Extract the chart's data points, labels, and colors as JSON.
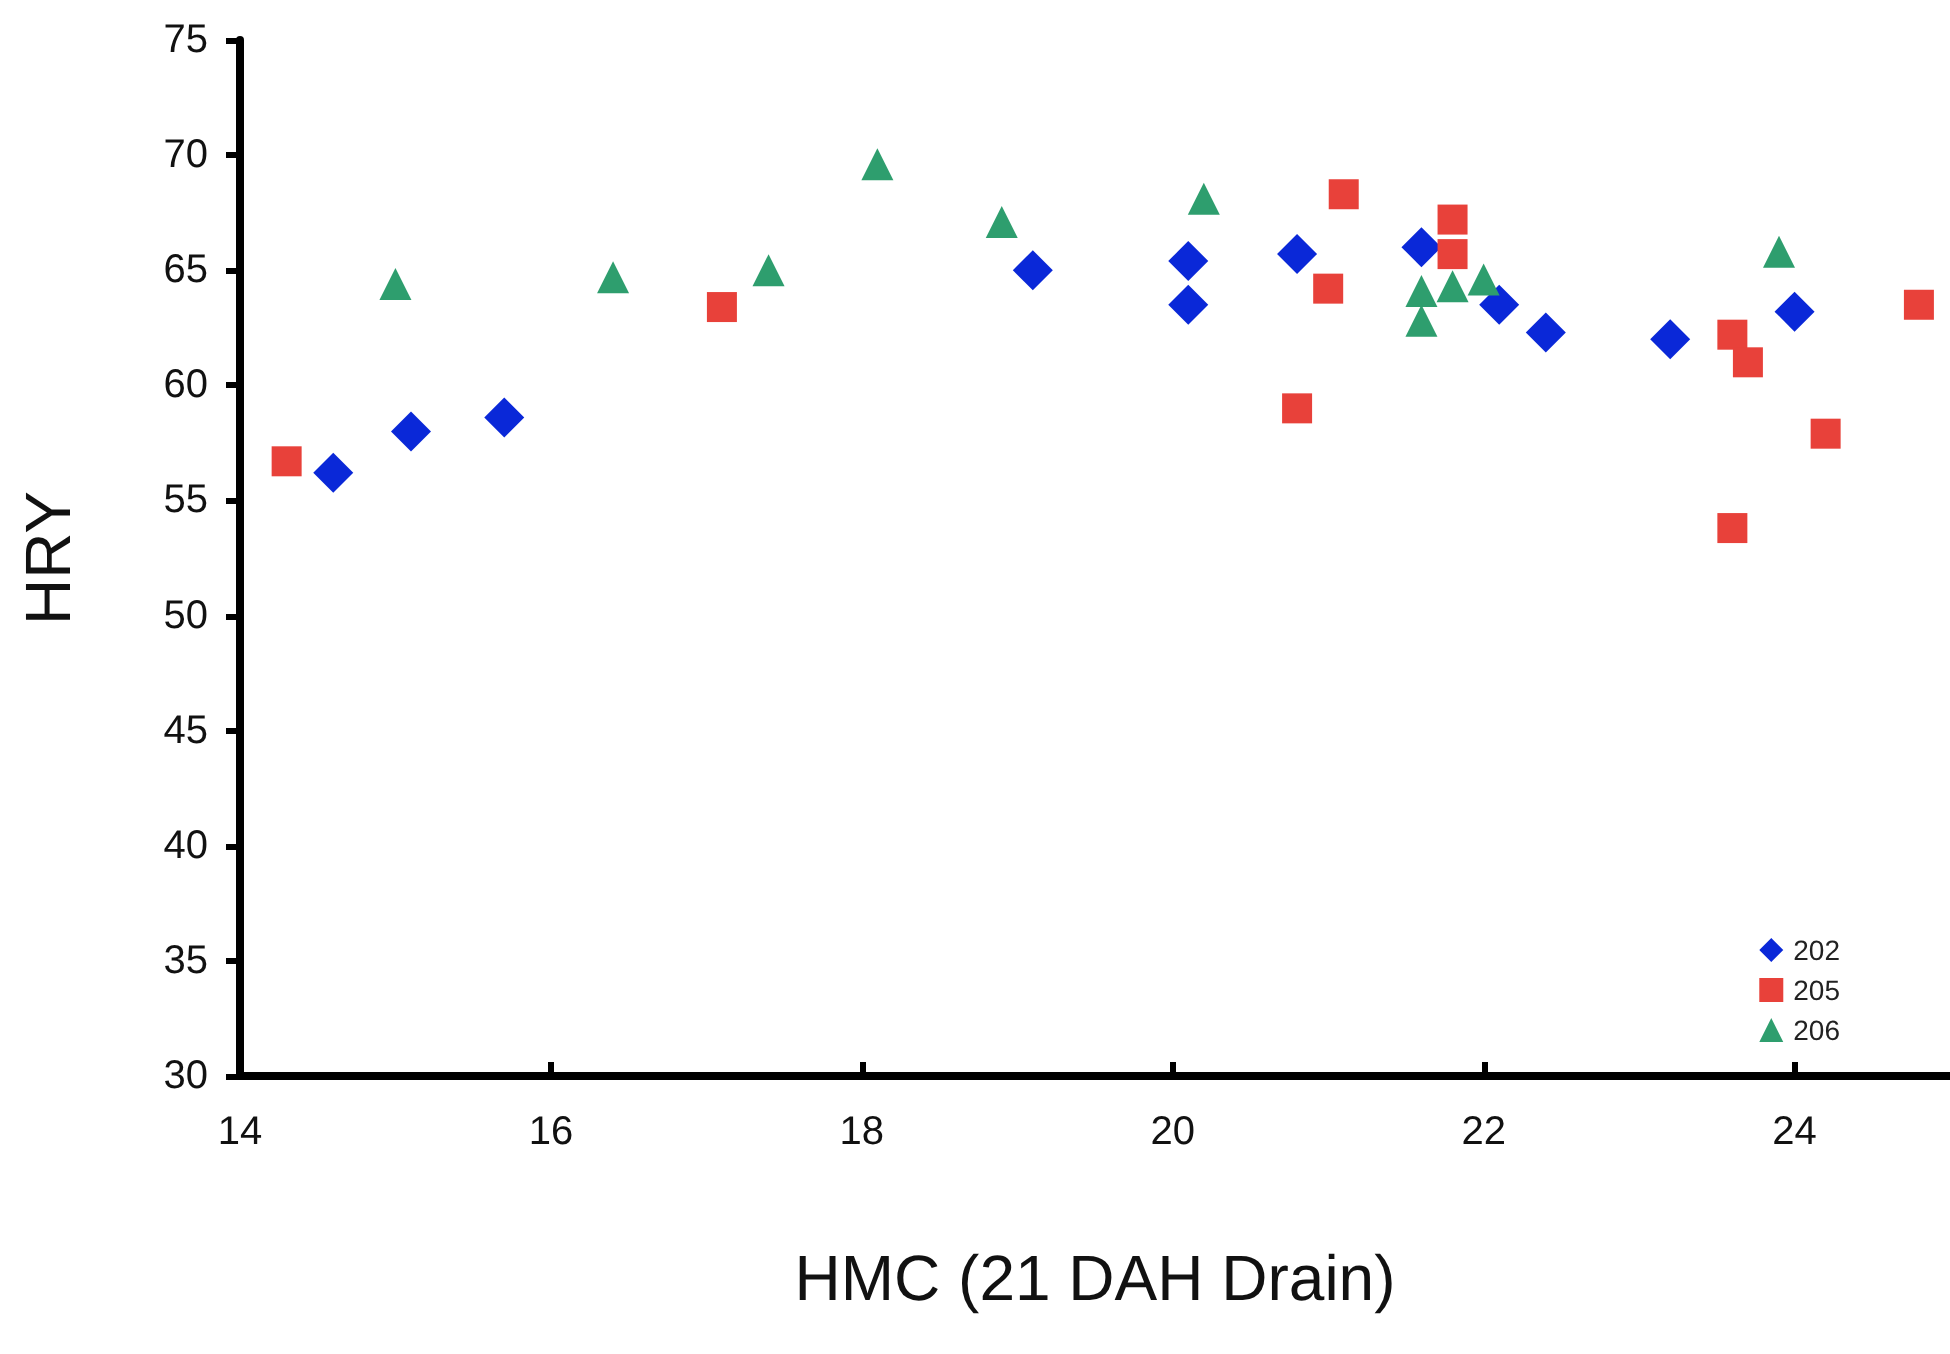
{
  "chart_data": {
    "type": "scatter",
    "xlabel": "HMC (21 DAH Drain)",
    "ylabel": "HRY",
    "xlim": [
      14,
      25
    ],
    "xticks": [
      14,
      16,
      18,
      20,
      22,
      24
    ],
    "ylim": [
      30,
      75
    ],
    "yticks": [
      30,
      35,
      40,
      45,
      50,
      55,
      60,
      65,
      70,
      75
    ],
    "grid": false,
    "legend": "bottom right",
    "series": [
      {
        "name": "202",
        "color": "#0a28d8",
        "marker": "diamond",
        "x": [
          14.6,
          15.1,
          15.7,
          19.1,
          20.1,
          20.1,
          20.8,
          21.6,
          22.1,
          22.4,
          23.2,
          24.0
        ],
        "values": [
          56.2,
          58.0,
          58.6,
          65.0,
          65.4,
          63.5,
          65.7,
          66.0,
          63.5,
          62.3,
          62.0,
          63.2
        ]
      },
      {
        "name": "205",
        "color": "#e8413a",
        "marker": "square",
        "x": [
          14.3,
          17.1,
          20.8,
          21.0,
          21.1,
          21.8,
          21.8,
          23.6,
          23.7,
          24.2,
          23.6,
          24.8
        ],
        "values": [
          56.7,
          63.4,
          59.0,
          64.2,
          68.3,
          67.2,
          65.7,
          62.2,
          61.0,
          57.9,
          53.8,
          63.5
        ]
      },
      {
        "name": "206",
        "color": "#2e9e6e",
        "marker": "triangle",
        "x": [
          15.0,
          16.4,
          17.4,
          18.1,
          18.9,
          20.2,
          21.6,
          21.6,
          21.8,
          22.0,
          23.9
        ],
        "values": [
          64.4,
          64.7,
          65.0,
          69.6,
          67.1,
          68.1,
          64.1,
          62.8,
          64.3,
          64.6,
          65.8
        ]
      }
    ]
  }
}
